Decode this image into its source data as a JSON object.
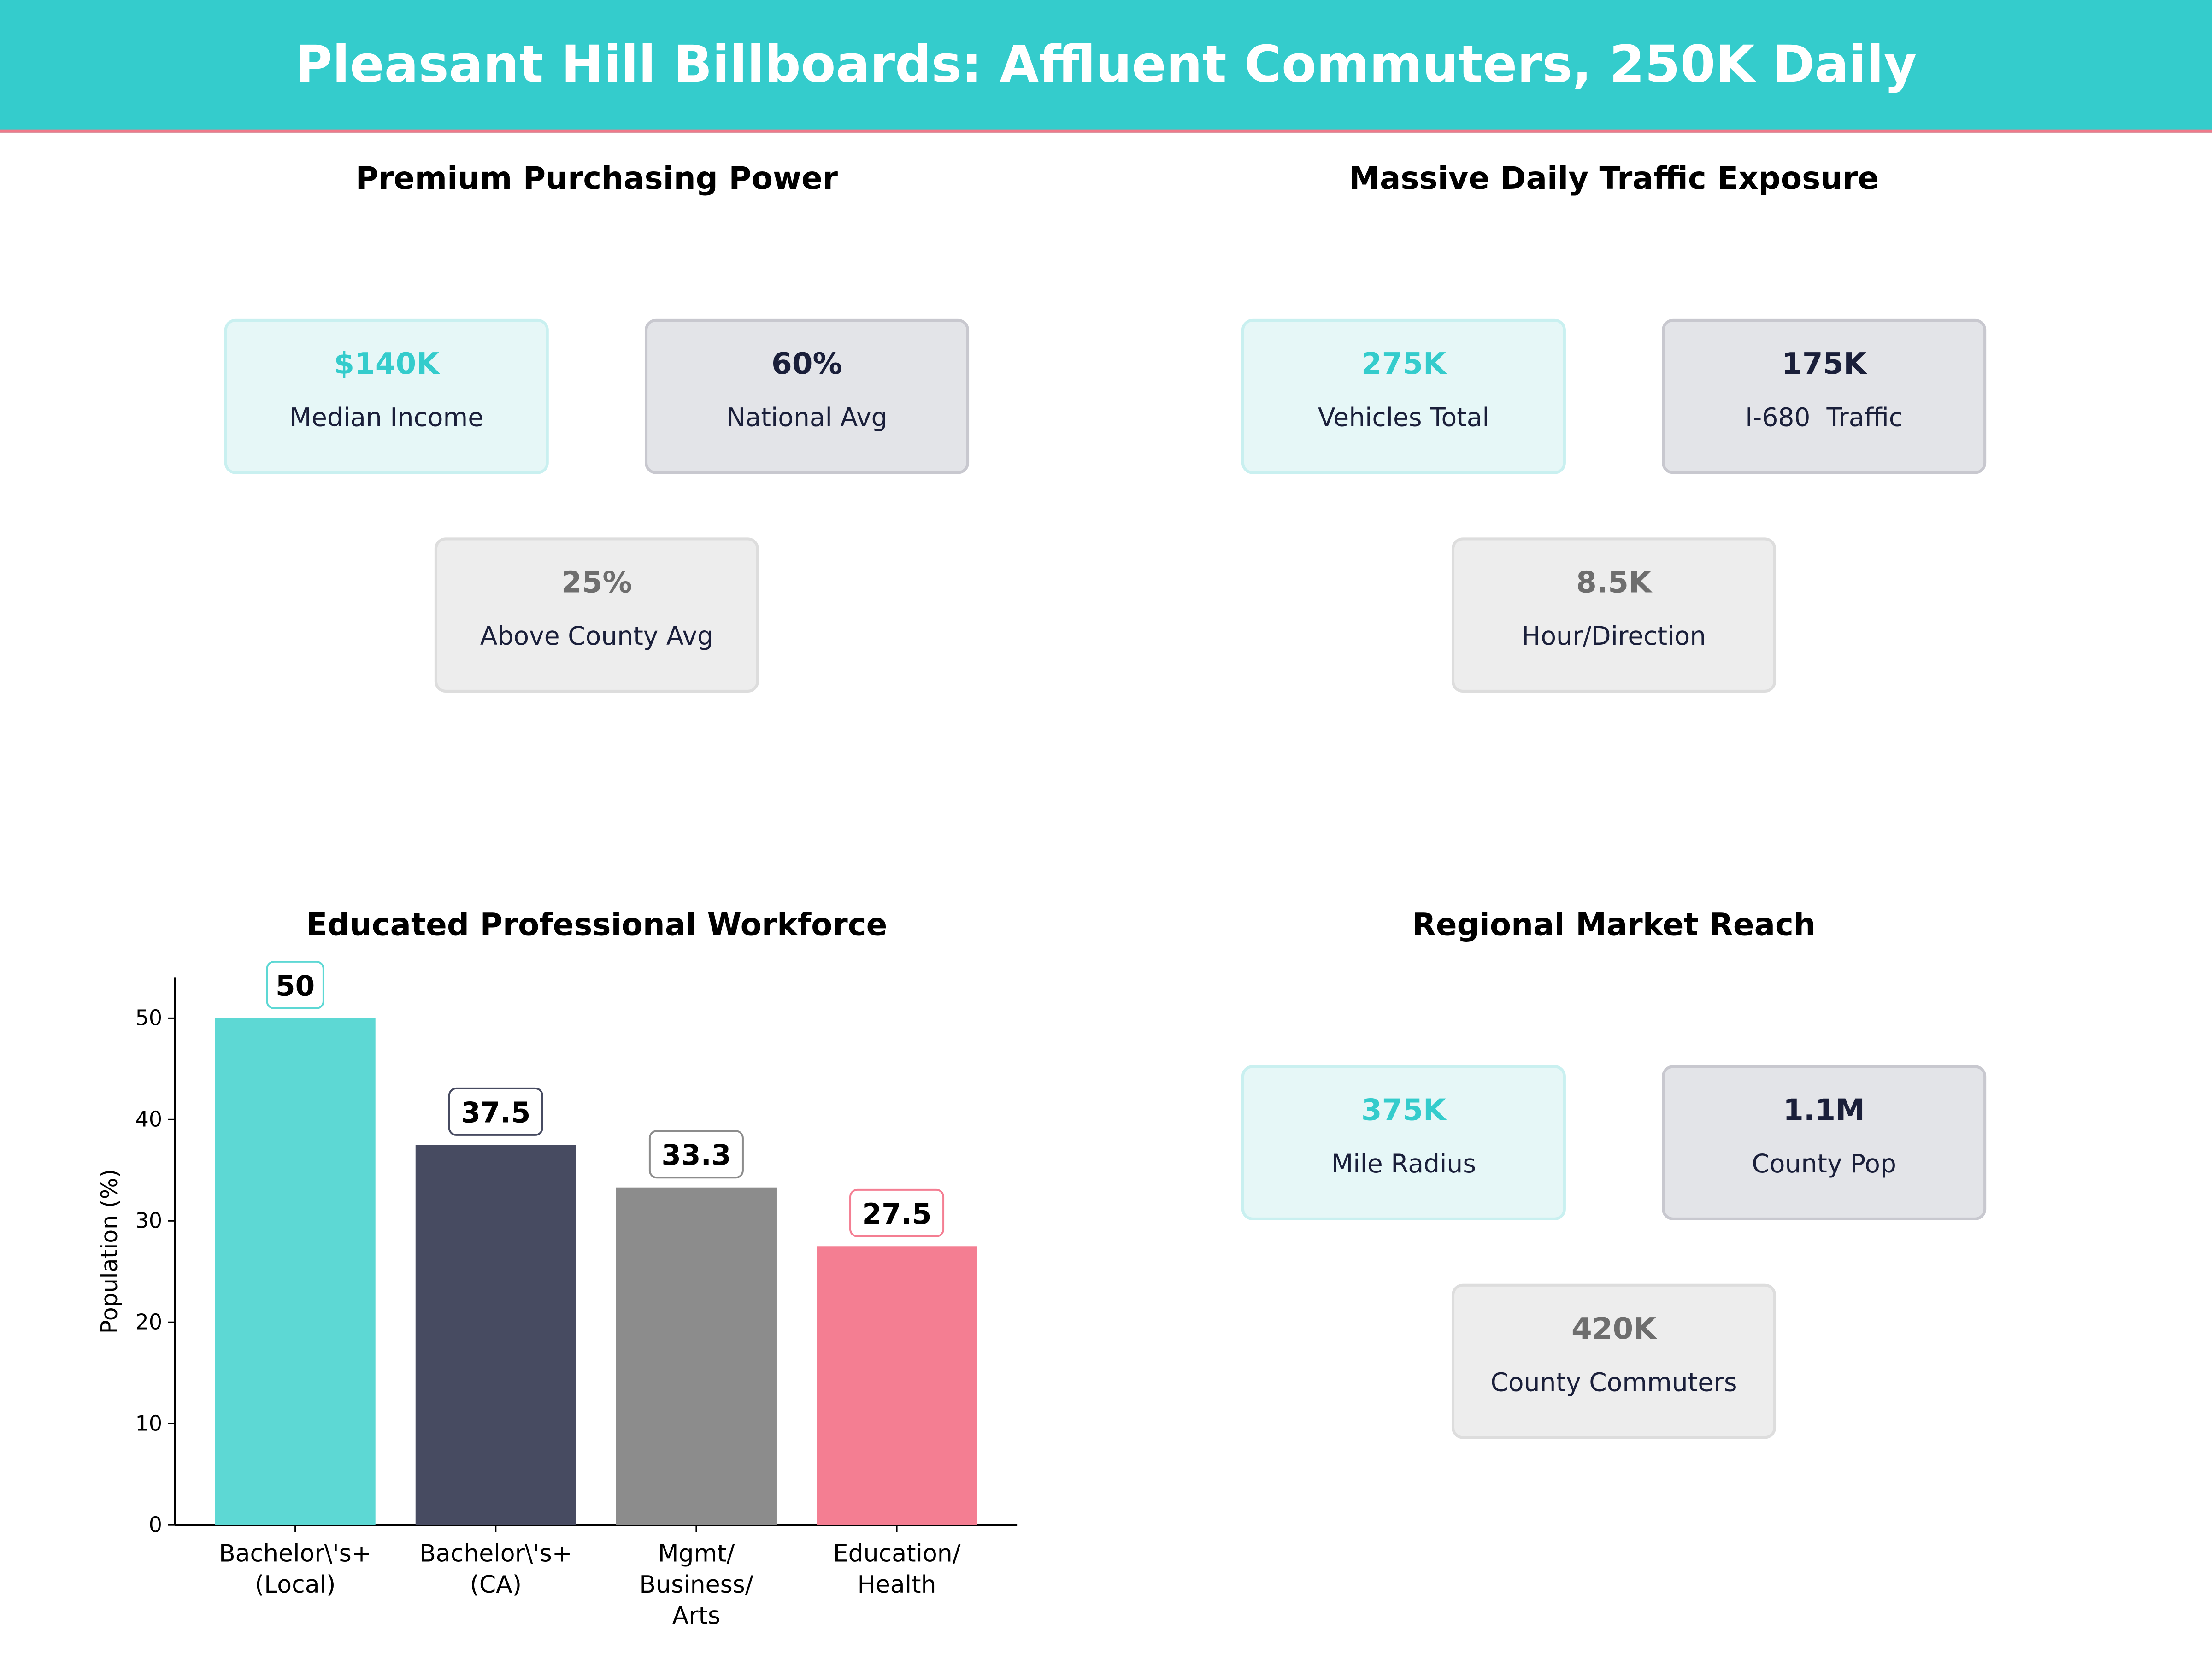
{
  "header": {
    "title": "Pleasant Hill Billboards: Affluent Commuters, 250K Daily"
  },
  "panels": {
    "purchasing": {
      "title": "Premium Purchasing Power",
      "cards": [
        {
          "value": "$140K",
          "label": "Median Income"
        },
        {
          "value": "60%",
          "label": "National Avg"
        },
        {
          "value": "25%",
          "label": "Above County Avg"
        }
      ]
    },
    "traffic": {
      "title": "Massive Daily Traffic Exposure",
      "cards": [
        {
          "value": "275K",
          "label": "Vehicles Total"
        },
        {
          "value": "175K",
          "label": "I-680  Traffic"
        },
        {
          "value": "8.5K",
          "label": "Hour/Direction"
        }
      ]
    },
    "reach": {
      "title": "Regional Market Reach",
      "cards": [
        {
          "value": "375K",
          "label": "Mile Radius"
        },
        {
          "value": "1.1M",
          "label": "County Pop"
        },
        {
          "value": "420K",
          "label": "County Commuters"
        }
      ]
    }
  },
  "chart_data": {
    "type": "bar",
    "title": "Educated Professional Workforce",
    "categories": [
      [
        "Bachelor\\'s+",
        "(Local)"
      ],
      [
        "Bachelor\\'s+",
        "(CA)"
      ],
      [
        "Mgmt/",
        "Business/",
        "Arts"
      ],
      [
        "Education/",
        "Health"
      ]
    ],
    "values": [
      50,
      37.5,
      33.3,
      27.5
    ],
    "value_labels": [
      "50",
      "37.5",
      "33.3",
      "27.5"
    ],
    "colors": [
      "#5DD8D4",
      "#474B61",
      "#8C8C8C",
      "#F47E92"
    ],
    "label_border_colors": [
      "#5DD8D4",
      "#474B61",
      "#8C8C8C",
      "#F47E92"
    ],
    "xlabel": "",
    "ylabel": "Population (%)",
    "ylim": [
      0,
      54
    ],
    "yticks": [
      0,
      10,
      20,
      30,
      40,
      50
    ]
  }
}
